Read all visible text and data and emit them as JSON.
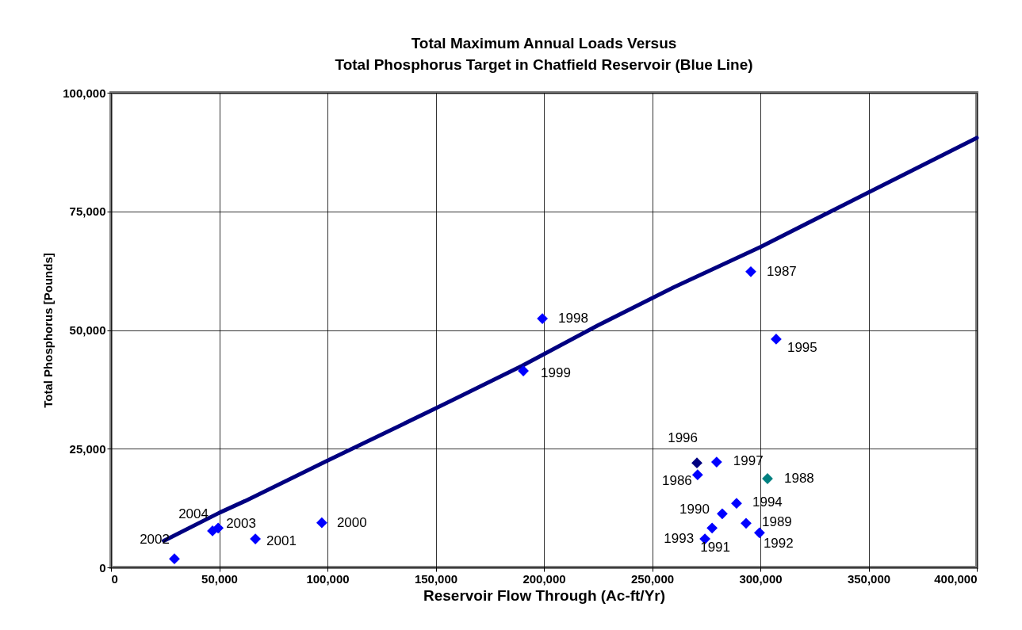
{
  "chart_data": {
    "type": "scatter",
    "title": "Total Maximum Annual Loads Versus\nTotal Phosphorus Target in Chatfield Reservoir (Blue Line)",
    "xlabel": "Reservoir Flow Through (Ac-ft/Yr)",
    "ylabel": "Total Phosphorus [Pounds]",
    "xlim": [
      0,
      400000
    ],
    "xticks": [
      0,
      {
        "value": 50000,
        "label": "50,000"
      },
      {
        "value": 100000,
        "label": "100,000"
      },
      {
        "value": 150000,
        "label": "150,000"
      },
      {
        "value": 200000,
        "label": "200,000"
      },
      {
        "value": 250000,
        "label": "250,000"
      },
      {
        "value": 300000,
        "label": "300,000"
      },
      {
        "value": 350000,
        "label": "350,000"
      },
      {
        "value": 400000,
        "label": "400,000"
      }
    ],
    "ylim": [
      0,
      100000
    ],
    "yticks": [
      0,
      {
        "value": 25000,
        "label": "25,000"
      },
      {
        "value": 50000,
        "label": "50,000"
      },
      {
        "value": 75000,
        "label": "75,000"
      },
      {
        "value": 100000,
        "label": "100,000"
      }
    ],
    "grid": true,
    "series": [
      {
        "type": "line",
        "color": "#000080",
        "line_style": "solid",
        "x": [
          24400,
          50000,
          62000,
          100000,
          150000,
          190000,
          225000,
          260000,
          300000,
          350000,
          400000
        ],
        "values": [
          5600,
          11500,
          14000,
          22500,
          33500,
          42500,
          51000,
          59000,
          67500,
          79000,
          90500
        ]
      },
      {
        "marker": "diamond",
        "x": [
          29300,
          46900,
          49500,
          66700,
          97400,
          190500,
          199300,
          295600,
          307300,
          270700,
          279800,
          271000,
          303300,
          289000,
          282400,
          293400,
          277700,
          299600,
          274400
        ],
        "values": [
          1800,
          7700,
          8300,
          6000,
          9400,
          41400,
          52400,
          62300,
          48100,
          22000,
          22200,
          19500,
          18700,
          13500,
          11300,
          9300,
          8300,
          7300,
          6000
        ],
        "colors": [
          "#0000ff",
          "#0000ff",
          "#0000ff",
          "#0000ff",
          "#0000ff",
          "#0000ff",
          "#0000ff",
          "#0000ff",
          "#0000ff",
          "#000080",
          "#0000ff",
          "#0000ff",
          "#008080",
          "#0000ff",
          "#0000ff",
          "#0000ff",
          "#0000ff",
          "#0000ff",
          "#0000ff"
        ]
      }
    ],
    "annotations": [
      {
        "text": "2002",
        "x": 29300,
        "y": 1800
      },
      {
        "text": "2004",
        "x": 46900,
        "y": 7700
      },
      {
        "text": "2003",
        "x": 49500,
        "y": 8300
      },
      {
        "text": "2001",
        "x": 66700,
        "y": 6000
      },
      {
        "text": "2000",
        "x": 97400,
        "y": 9400
      },
      {
        "text": "1999",
        "x": 190500,
        "y": 41400
      },
      {
        "text": "1998",
        "x": 199300,
        "y": 52400
      },
      {
        "text": "1987",
        "x": 295600,
        "y": 62300
      },
      {
        "text": "1995",
        "x": 307300,
        "y": 48100
      },
      {
        "text": "1996",
        "x": 270700,
        "y": 22000
      },
      {
        "text": "1997",
        "x": 279800,
        "y": 22200
      },
      {
        "text": "1986",
        "x": 271000,
        "y": 19500
      },
      {
        "text": "1988",
        "x": 303300,
        "y": 18700
      },
      {
        "text": "1994",
        "x": 289000,
        "y": 13500
      },
      {
        "text": "1990",
        "x": 282400,
        "y": 11300
      },
      {
        "text": "1989",
        "x": 293400,
        "y": 9300
      },
      {
        "text": "1991",
        "x": 277700,
        "y": 8300
      },
      {
        "text": "1992",
        "x": 299600,
        "y": 7300
      },
      {
        "text": "1993",
        "x": 274400,
        "y": 6000
      }
    ]
  }
}
